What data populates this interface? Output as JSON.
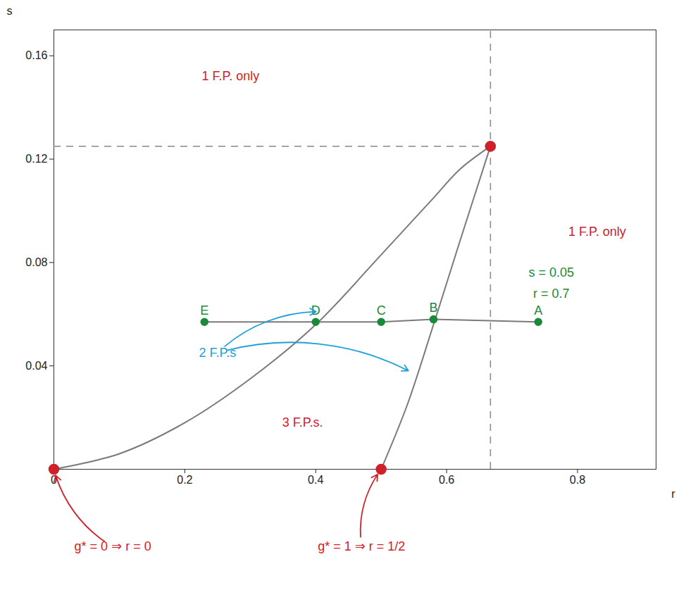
{
  "chart_data": {
    "type": "line",
    "x_label": "r",
    "y_label": "s",
    "xlim": [
      0,
      0.92
    ],
    "ylim": [
      0,
      0.17
    ],
    "xticks": [
      0,
      0.2,
      0.4,
      0.6,
      0.8
    ],
    "yticks": [
      0.04,
      0.08,
      0.12,
      0.16
    ],
    "series": [
      {
        "color": "#7a7a7a",
        "line_style": "solid",
        "x": [
          0,
          0.1,
          0.2,
          0.3,
          0.4,
          0.5,
          0.58,
          0.62,
          0.667
        ],
        "values": [
          0,
          0.006,
          0.018,
          0.035,
          0.056,
          0.083,
          0.105,
          0.116,
          0.125
        ]
      },
      {
        "color": "#7a7a7a",
        "line_style": "solid",
        "x": [
          0.5,
          0.54,
          0.58,
          0.62,
          0.667
        ],
        "values": [
          0,
          0.025,
          0.056,
          0.088,
          0.125
        ]
      }
    ],
    "fixed_points": {
      "color": "#d0202a",
      "marker": "circle",
      "x": [
        0,
        0.5,
        0.667
      ],
      "values": [
        0,
        0,
        0.125
      ]
    },
    "cusp": [
      0.667,
      0.125
    ],
    "path": {
      "color": "#1a8a3a",
      "marker": "circle",
      "labels": [
        "E",
        "D",
        "C",
        "B",
        "A"
      ],
      "x": [
        0.23,
        0.4,
        0.5,
        0.58,
        0.74
      ],
      "values": [
        0.057,
        0.057,
        0.057,
        0.058,
        0.057
      ]
    },
    "annotations": [
      {
        "text": "1 F.P. only",
        "x": 0.27,
        "y": 0.152,
        "color": "#d0202a"
      },
      {
        "text": "1 F.P. only",
        "x": 0.83,
        "y": 0.092,
        "color": "#d0202a"
      },
      {
        "text": "3 F.P.s.",
        "x": 0.38,
        "y": 0.018,
        "color": "#d0202a"
      },
      {
        "text": "2 F.P.s",
        "x": 0.25,
        "y": 0.045,
        "color": "#1fa0d8",
        "arrow_to": [
          [
            0.41,
            0.061
          ],
          [
            0.55,
            0.037
          ]
        ]
      },
      {
        "text": "s = 0.05",
        "x": 0.76,
        "y": 0.076,
        "color": "#1a8a3a"
      },
      {
        "text": "r = 0.7",
        "x": 0.76,
        "y": 0.068,
        "color": "#1a8a3a"
      },
      {
        "text": "g* = 0 ⇒ r = 0",
        "x": 0.09,
        "y": -0.03,
        "color": "#d0202a",
        "arrow_to": [
          [
            0,
            0
          ]
        ]
      },
      {
        "text": "g* = 1 ⇒ r = 1/2",
        "x": 0.47,
        "y": -0.03,
        "color": "#d0202a",
        "arrow_to": [
          [
            0.5,
            0
          ]
        ]
      }
    ]
  }
}
